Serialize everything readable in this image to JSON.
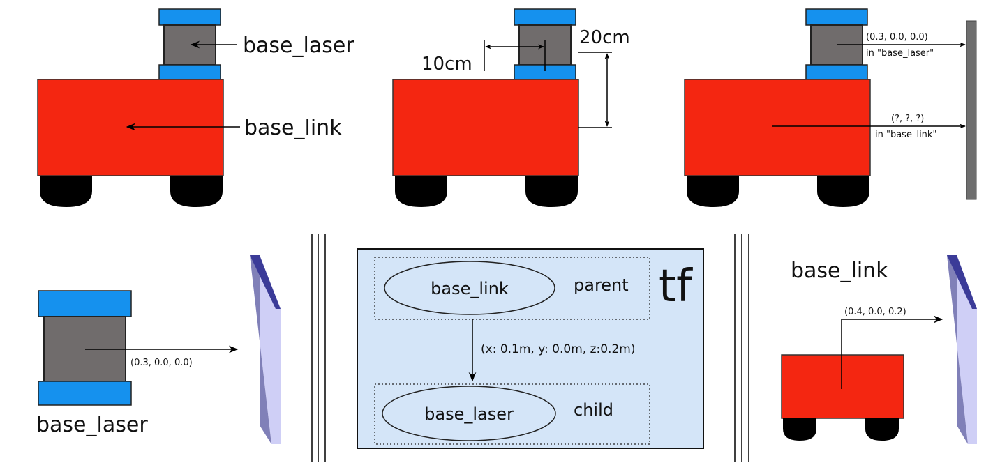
{
  "colors": {
    "robot_body": "#f42611",
    "laser_caps": "#1591ee",
    "laser_core": "#706c6c",
    "wall": "#8a8ab9",
    "tf_panel": "#d4e5f8"
  },
  "panel1": {
    "laser_label": "base_laser",
    "body_label": "base_link"
  },
  "panel2": {
    "dim_horizontal": "10cm",
    "dim_vertical": "20cm"
  },
  "panel3": {
    "laser_reading": "(0.3, 0.0, 0.0)",
    "laser_frame": "in \"base_laser\"",
    "link_reading": "(?, ?, ?)",
    "link_frame": "in \"base_link\""
  },
  "panel4": {
    "reading": "(0.3, 0.0, 0.0)",
    "frame_label": "base_laser"
  },
  "tf_panel": {
    "title": "tf",
    "parent_node": "base_link",
    "parent_role": "parent",
    "child_node": "base_laser",
    "child_role": "child",
    "transform": "(x: 0.1m, y: 0.0m, z:0.2m)"
  },
  "panel6": {
    "frame_label": "base_link",
    "reading": "(0.4, 0.0, 0.2)"
  }
}
